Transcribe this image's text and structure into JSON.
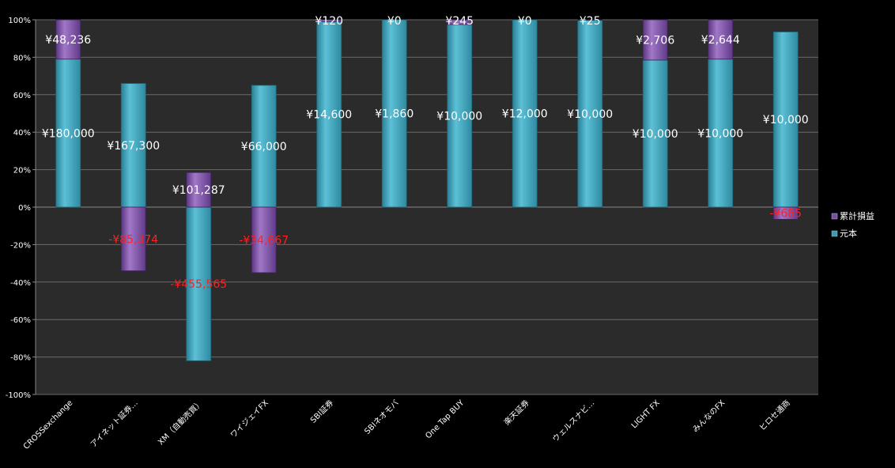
{
  "chart_data": {
    "type": "bar",
    "stacked": true,
    "percent_axis": true,
    "title": "",
    "xlabel": "",
    "ylabel": "",
    "ylim": [
      -100,
      100
    ],
    "y_ticks": [
      "100%",
      "80%",
      "60%",
      "40%",
      "20%",
      "0%",
      "-20%",
      "-40%",
      "-60%",
      "-80%",
      "-100%"
    ],
    "y_tick_values": [
      100,
      80,
      60,
      40,
      20,
      0,
      -20,
      -40,
      -60,
      -80,
      -100
    ],
    "grid": true,
    "legend_position": "right",
    "categories": [
      "CROSSexchange",
      "アイネット証券…",
      "XM（自動売買）",
      "ワイジェイFX",
      "SBI証券",
      "SBIネオモバ",
      "One Tap BUY",
      "楽天証券",
      "ウェルスナビ…",
      "LIGHT FX",
      "みんなのFX",
      "ヒロセ通商"
    ],
    "series": [
      {
        "name": "元本",
        "color": "#3a9cb3",
        "percent": [
          79,
          66,
          -82,
          65,
          99,
          100,
          97.5,
          100,
          99.75,
          78.5,
          79,
          93.5
        ],
        "labels": [
          "¥180,000",
          "¥167,300",
          "-¥455,565",
          "¥66,000",
          "¥14,600",
          "¥1,860",
          "¥10,000",
          "¥12,000",
          "¥10,000",
          "¥10,000",
          "¥10,000",
          "¥10,000"
        ]
      },
      {
        "name": "累計損益",
        "color": "#7a4fa0",
        "percent": [
          21,
          -34,
          18.5,
          -35,
          1,
          0,
          2.5,
          0,
          0.25,
          21.5,
          21,
          -6.5
        ],
        "labels": [
          "¥48,236",
          "-¥85,374",
          "¥101,287",
          "-¥34,667",
          "¥120",
          "¥0",
          "¥245",
          "¥0",
          "¥25",
          "¥2,706",
          "¥2,644",
          "-¥685"
        ]
      }
    ],
    "legend": [
      {
        "name": "累計損益",
        "color": "#7a4fa0"
      },
      {
        "name": "元本",
        "color": "#3a9cb3"
      }
    ],
    "negative_label_color": "#ff2020"
  }
}
